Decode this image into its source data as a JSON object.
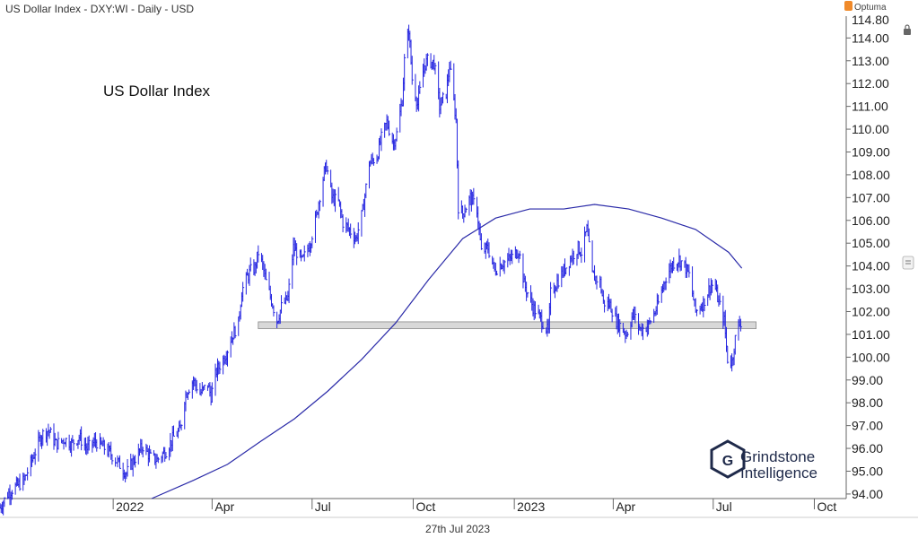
{
  "header": {
    "title": "US Dollar Index - DXY:WI - Daily - USD",
    "brand": "Optuma"
  },
  "chart_data": {
    "type": "line",
    "title": "US Dollar Index - DXY:WI - Daily - USD",
    "annotation": "US Dollar Index",
    "date_label": "27th Jul 2023",
    "y_axis": {
      "min": 93.8,
      "max": 114.8,
      "side": "right",
      "ticks": [
        94.0,
        95.0,
        96.0,
        97.0,
        98.0,
        99.0,
        100.0,
        101.0,
        102.0,
        103.0,
        104.0,
        105.0,
        106.0,
        107.0,
        108.0,
        109.0,
        110.0,
        111.0,
        112.0,
        113.0,
        114.0
      ],
      "top_tick_label": "114.80"
    },
    "x_axis": {
      "start": "2021-09-20",
      "end": "2023-10-30",
      "labels": [
        {
          "label": "2022",
          "date": "2022-01-01"
        },
        {
          "label": "Apr",
          "date": "2022-04-01"
        },
        {
          "label": "Jul",
          "date": "2022-07-01"
        },
        {
          "label": "Oct",
          "date": "2022-10-01"
        },
        {
          "label": "2023",
          "date": "2023-01-01"
        },
        {
          "label": "Apr",
          "date": "2023-04-01"
        },
        {
          "label": "Jul",
          "date": "2023-07-01"
        },
        {
          "label": "Oct",
          "date": "2023-10-01"
        }
      ]
    },
    "grid": false,
    "series": [
      {
        "type": "ohlc-bars",
        "color": "#2424e0",
        "points": [
          [
            "2021-09-20",
            93.4
          ],
          [
            "2021-09-27",
            94.0
          ],
          [
            "2021-10-01",
            94.2
          ],
          [
            "2021-10-12",
            94.6
          ],
          [
            "2021-10-20",
            95.6
          ],
          [
            "2021-10-28",
            96.6
          ],
          [
            "2021-11-03",
            96.8
          ],
          [
            "2021-11-10",
            96.2
          ],
          [
            "2021-11-18",
            96.4
          ],
          [
            "2021-11-24",
            96.2
          ],
          [
            "2021-12-01",
            96.5
          ],
          [
            "2021-12-08",
            96.0
          ],
          [
            "2021-12-16",
            96.3
          ],
          [
            "2021-12-22",
            96.1
          ],
          [
            "2021-12-29",
            95.8
          ],
          [
            "2022-01-05",
            95.4
          ],
          [
            "2022-01-13",
            94.9
          ],
          [
            "2022-01-20",
            95.5
          ],
          [
            "2022-01-28",
            96.1
          ],
          [
            "2022-02-04",
            95.6
          ],
          [
            "2022-02-10",
            95.5
          ],
          [
            "2022-02-18",
            95.9
          ],
          [
            "2022-02-25",
            96.5
          ],
          [
            "2022-03-03",
            96.8
          ],
          [
            "2022-03-07",
            98.2
          ],
          [
            "2022-03-10",
            98.6
          ],
          [
            "2022-03-15",
            99.0
          ],
          [
            "2022-03-21",
            98.4
          ],
          [
            "2022-03-28",
            98.8
          ],
          [
            "2022-03-31",
            98.3
          ],
          [
            "2022-04-05",
            99.4
          ],
          [
            "2022-04-11",
            99.9
          ],
          [
            "2022-04-14",
            100.2
          ],
          [
            "2022-04-18",
            100.8
          ],
          [
            "2022-04-25",
            101.5
          ],
          [
            "2022-04-28",
            102.9
          ],
          [
            "2022-05-03",
            103.5
          ],
          [
            "2022-05-06",
            103.8
          ],
          [
            "2022-05-10",
            103.9
          ],
          [
            "2022-05-13",
            104.6
          ],
          [
            "2022-05-17",
            104.0
          ],
          [
            "2022-05-20",
            103.3
          ],
          [
            "2022-05-25",
            102.5
          ],
          [
            "2022-05-30",
            101.6
          ],
          [
            "2022-06-03",
            102.2
          ],
          [
            "2022-06-09",
            102.6
          ],
          [
            "2022-06-14",
            104.8
          ],
          [
            "2022-06-17",
            104.6
          ],
          [
            "2022-06-22",
            104.2
          ],
          [
            "2022-06-29",
            105.0
          ],
          [
            "2022-07-05",
            106.2
          ],
          [
            "2022-07-08",
            107.1
          ],
          [
            "2022-07-12",
            108.1
          ],
          [
            "2022-07-14",
            108.4
          ],
          [
            "2022-07-19",
            107.0
          ],
          [
            "2022-07-25",
            106.8
          ],
          [
            "2022-07-29",
            105.9
          ],
          [
            "2022-08-02",
            105.7
          ],
          [
            "2022-08-10",
            105.2
          ],
          [
            "2022-08-16",
            106.4
          ],
          [
            "2022-08-22",
            108.5
          ],
          [
            "2022-08-29",
            108.8
          ],
          [
            "2022-09-02",
            109.6
          ],
          [
            "2022-09-07",
            110.3
          ],
          [
            "2022-09-13",
            109.4
          ],
          [
            "2022-09-16",
            109.8
          ],
          [
            "2022-09-21",
            111.3
          ],
          [
            "2022-09-23",
            113.0
          ],
          [
            "2022-09-27",
            114.4
          ],
          [
            "2022-09-30",
            112.2
          ],
          [
            "2022-10-05",
            111.1
          ],
          [
            "2022-10-11",
            112.8
          ],
          [
            "2022-10-14",
            113.0
          ],
          [
            "2022-10-20",
            112.9
          ],
          [
            "2022-10-25",
            111.0
          ],
          [
            "2022-10-31",
            111.6
          ],
          [
            "2022-11-03",
            112.8
          ],
          [
            "2022-11-09",
            110.4
          ],
          [
            "2022-11-11",
            106.6
          ],
          [
            "2022-11-15",
            106.3
          ],
          [
            "2022-11-22",
            107.0
          ],
          [
            "2022-11-28",
            106.5
          ],
          [
            "2022-12-02",
            104.6
          ],
          [
            "2022-12-08",
            104.8
          ],
          [
            "2022-12-14",
            103.8
          ],
          [
            "2022-12-20",
            104.1
          ],
          [
            "2022-12-28",
            104.3
          ],
          [
            "2023-01-05",
            104.7
          ],
          [
            "2023-01-10",
            103.2
          ],
          [
            "2023-01-18",
            102.2
          ],
          [
            "2023-01-26",
            101.6
          ],
          [
            "2023-02-01",
            101.1
          ],
          [
            "2023-02-03",
            102.8
          ],
          [
            "2023-02-09",
            103.3
          ],
          [
            "2023-02-15",
            103.8
          ],
          [
            "2023-02-22",
            104.4
          ],
          [
            "2023-02-28",
            104.8
          ],
          [
            "2023-03-03",
            104.6
          ],
          [
            "2023-03-08",
            105.6
          ],
          [
            "2023-03-13",
            103.6
          ],
          [
            "2023-03-20",
            103.3
          ],
          [
            "2023-03-23",
            102.4
          ],
          [
            "2023-03-29",
            102.3
          ],
          [
            "2023-04-04",
            101.6
          ],
          [
            "2023-04-13",
            101.0
          ],
          [
            "2023-04-19",
            101.9
          ],
          [
            "2023-04-26",
            101.2
          ],
          [
            "2023-05-03",
            101.4
          ],
          [
            "2023-05-11",
            102.2
          ],
          [
            "2023-05-18",
            103.4
          ],
          [
            "2023-05-25",
            104.1
          ],
          [
            "2023-05-31",
            104.3
          ],
          [
            "2023-06-05",
            104.0
          ],
          [
            "2023-06-09",
            103.6
          ],
          [
            "2023-06-15",
            102.0
          ],
          [
            "2023-06-22",
            102.4
          ],
          [
            "2023-06-29",
            103.2
          ],
          [
            "2023-07-03",
            103.0
          ],
          [
            "2023-07-06",
            102.4
          ],
          [
            "2023-07-11",
            101.6
          ],
          [
            "2023-07-14",
            99.9
          ],
          [
            "2023-07-18",
            99.8
          ],
          [
            "2023-07-21",
            100.8
          ],
          [
            "2023-07-24",
            101.4
          ],
          [
            "2023-07-27",
            101.6
          ]
        ]
      },
      {
        "type": "moving-average",
        "color": "#2a2aa8",
        "points": [
          [
            "2022-02-05",
            93.8
          ],
          [
            "2022-03-15",
            94.6
          ],
          [
            "2022-04-15",
            95.3
          ],
          [
            "2022-05-15",
            96.3
          ],
          [
            "2022-06-15",
            97.3
          ],
          [
            "2022-07-15",
            98.5
          ],
          [
            "2022-08-15",
            99.9
          ],
          [
            "2022-09-15",
            101.5
          ],
          [
            "2022-10-15",
            103.4
          ],
          [
            "2022-11-15",
            105.2
          ],
          [
            "2022-12-15",
            106.1
          ],
          [
            "2023-01-15",
            106.5
          ],
          [
            "2023-02-15",
            106.5
          ],
          [
            "2023-03-15",
            106.7
          ],
          [
            "2023-04-15",
            106.5
          ],
          [
            "2023-05-15",
            106.1
          ],
          [
            "2023-06-15",
            105.6
          ],
          [
            "2023-07-15",
            104.6
          ],
          [
            "2023-07-27",
            103.9
          ]
        ]
      }
    ],
    "band": {
      "color": "#d8d8d8",
      "from": "2022-05-13",
      "to": "2023-08-09",
      "y_low": 101.25,
      "y_high": 101.55
    }
  },
  "watermark": {
    "line1": "Grindstone",
    "line2": "Intelligence",
    "glyph": "G"
  },
  "icons": {
    "lock": "lock-icon",
    "toolbar": "toolbar-icon"
  }
}
